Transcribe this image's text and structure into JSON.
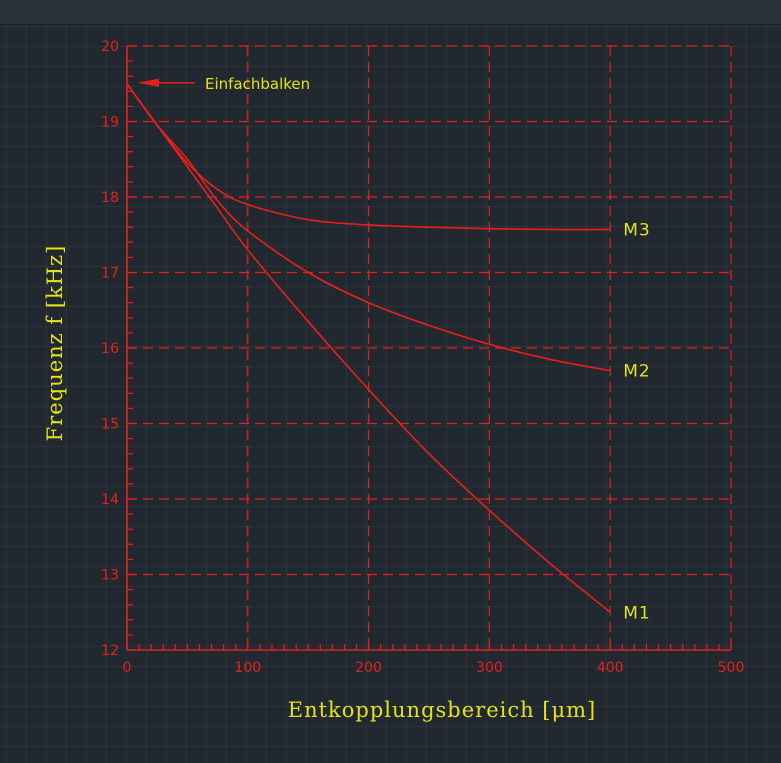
{
  "chart_data": {
    "type": "line",
    "xlabel": "Entkopplungsbereich  [μm]",
    "ylabel": "Frequenz  f  [kHz]",
    "xlim": [
      0,
      500
    ],
    "ylim": [
      12,
      20
    ],
    "x_ticks": [
      "0",
      "100",
      "200",
      "300",
      "400",
      "500"
    ],
    "y_ticks": [
      "12",
      "13",
      "14",
      "15",
      "16",
      "17",
      "18",
      "19",
      "20"
    ],
    "grid": true,
    "series": [
      {
        "name": "M1",
        "x": [
          0,
          25,
          50,
          75,
          100,
          150,
          200,
          250,
          300,
          350,
          400
        ],
        "y": [
          19.5,
          18.95,
          18.4,
          17.85,
          17.3,
          16.35,
          15.45,
          14.6,
          13.85,
          13.15,
          12.5
        ]
      },
      {
        "name": "M2",
        "x": [
          0,
          25,
          50,
          75,
          100,
          150,
          200,
          250,
          300,
          350,
          400
        ],
        "y": [
          19.5,
          18.95,
          18.5,
          17.95,
          17.55,
          17.0,
          16.6,
          16.3,
          16.05,
          15.85,
          15.7
        ]
      },
      {
        "name": "M3",
        "x": [
          0,
          25,
          50,
          75,
          100,
          150,
          200,
          250,
          300,
          350,
          400
        ],
        "y": [
          19.5,
          18.95,
          18.45,
          18.1,
          17.9,
          17.7,
          17.63,
          17.6,
          17.58,
          17.57,
          17.57
        ]
      }
    ],
    "annotations": [
      {
        "text": "Einfachbalken",
        "x": 0,
        "y": 19.5
      }
    ],
    "colors": {
      "curve": "#e8201b",
      "grid": "#e8201b",
      "text": "#e6e21a",
      "background": "#212830"
    }
  }
}
